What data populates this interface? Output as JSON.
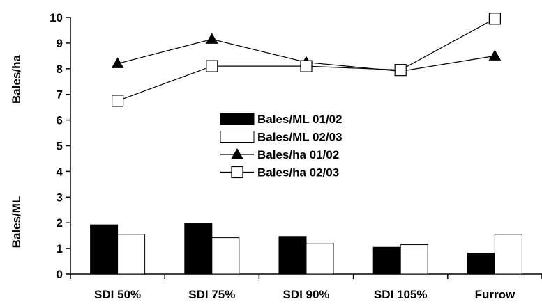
{
  "chart_data": {
    "type": "bar",
    "categories": [
      "SDI 50%",
      "SDI 75%",
      "SDI 90%",
      "SDI 105%",
      "Furrow"
    ],
    "ylim": [
      0,
      10
    ],
    "yticks": [
      0,
      1,
      2,
      3,
      4,
      5,
      6,
      7,
      8,
      9,
      10
    ],
    "ylabel_upper": "Bales/ha",
    "ylabel_lower": "Bales/ML",
    "grid": false,
    "legend_position": "center",
    "series": [
      {
        "name": "Bales/ML 01/02",
        "kind": "bar",
        "style": "filled",
        "color": "#000000",
        "values": [
          1.92,
          1.98,
          1.47,
          1.05,
          0.82
        ]
      },
      {
        "name": "Bales/ML 02/03",
        "kind": "bar",
        "style": "hollow",
        "color": "#ffffff",
        "values": [
          1.55,
          1.42,
          1.2,
          1.15,
          1.55
        ]
      },
      {
        "name": "Bales/ha 01/02",
        "kind": "line",
        "marker": "triangle",
        "color": "#000000",
        "values": [
          8.2,
          9.15,
          8.25,
          7.9,
          8.5
        ]
      },
      {
        "name": "Bales/ha 02/03",
        "kind": "line",
        "marker": "square",
        "color": "#000000",
        "values": [
          6.75,
          8.1,
          8.1,
          7.95,
          9.95
        ]
      }
    ]
  }
}
